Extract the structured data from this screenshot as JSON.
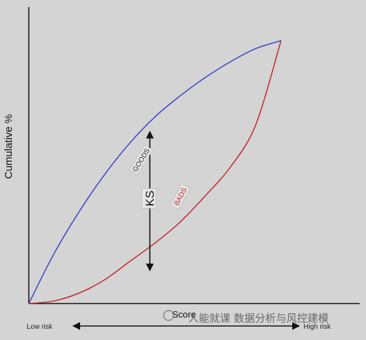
{
  "chart_data": {
    "type": "line",
    "title": "",
    "ylabel": "Cumulative %",
    "xlabel": "Score",
    "x_axis_low_label": "Low risk",
    "x_axis_high_label": "High risk",
    "xlim": [
      0,
      1
    ],
    "ylim": [
      0,
      1
    ],
    "grid": false,
    "series": [
      {
        "name": "GOODS",
        "color": "#3b46c4",
        "x": [
          0,
          0.1,
          0.2,
          0.3,
          0.4,
          0.5,
          0.6,
          0.7,
          0.8,
          0.9,
          1.0
        ],
        "values": [
          0,
          0.19,
          0.35,
          0.49,
          0.61,
          0.71,
          0.79,
          0.86,
          0.92,
          0.97,
          1.0
        ]
      },
      {
        "name": "BADS",
        "color": "#c0282d",
        "x": [
          0,
          0.1,
          0.2,
          0.3,
          0.4,
          0.5,
          0.6,
          0.7,
          0.8,
          0.9,
          1.0
        ],
        "values": [
          0,
          0.01,
          0.04,
          0.09,
          0.16,
          0.23,
          0.31,
          0.41,
          0.52,
          0.68,
          1.0
        ]
      }
    ],
    "annotations": [
      {
        "label": "KS",
        "x": 0.48,
        "y_top": 0.66,
        "y_bottom": 0.12
      }
    ]
  },
  "watermark": {
    "text": "人能就课 数据分析与风控建模"
  }
}
